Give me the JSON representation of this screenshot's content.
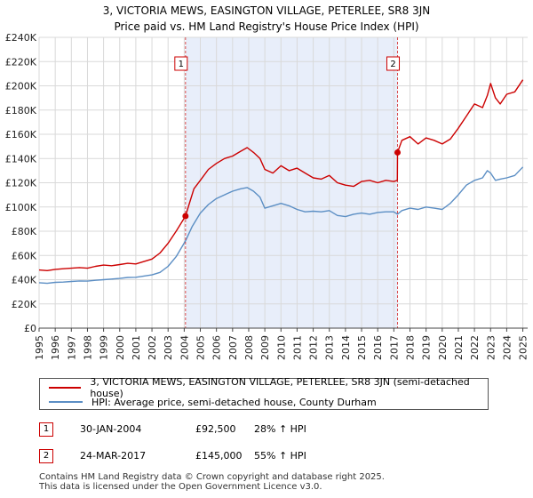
{
  "title": {
    "line1": "3, VICTORIA MEWS, EASINGTON VILLAGE, PETERLEE, SR8 3JN",
    "line2": "Price paid vs. HM Land Registry's House Price Index (HPI)"
  },
  "chart_data": {
    "type": "line",
    "title": "3, VICTORIA MEWS, EASINGTON VILLAGE, PETERLEE, SR8 3JN — Price paid vs. HM Land Registry's House Price Index (HPI)",
    "xlim": [
      1995,
      2025.3
    ],
    "ylim": [
      0,
      240000
    ],
    "x_ticks": [
      1995,
      1996,
      1997,
      1998,
      1999,
      2000,
      2001,
      2002,
      2003,
      2004,
      2005,
      2006,
      2007,
      2008,
      2009,
      2010,
      2011,
      2012,
      2013,
      2014,
      2015,
      2016,
      2017,
      2018,
      2019,
      2020,
      2021,
      2022,
      2023,
      2024,
      2025
    ],
    "y_ticks": [
      {
        "value": 0,
        "label": "£0"
      },
      {
        "value": 20000,
        "label": "£20K"
      },
      {
        "value": 40000,
        "label": "£40K"
      },
      {
        "value": 60000,
        "label": "£60K"
      },
      {
        "value": 80000,
        "label": "£80K"
      },
      {
        "value": 100000,
        "label": "£100K"
      },
      {
        "value": 120000,
        "label": "£120K"
      },
      {
        "value": 140000,
        "label": "£140K"
      },
      {
        "value": 160000,
        "label": "£160K"
      },
      {
        "value": 180000,
        "label": "£180K"
      },
      {
        "value": 200000,
        "label": "£200K"
      },
      {
        "value": 220000,
        "label": "£220K"
      },
      {
        "value": 240000,
        "label": "£240K"
      }
    ],
    "grid": true,
    "shaded_region": {
      "from": 2004.08,
      "to": 2017.23
    },
    "series": [
      {
        "name": "3, VICTORIA MEWS, EASINGTON VILLAGE, PETERLEE, SR8 3JN (semi-detached house)",
        "color": "#cc0000",
        "x": [
          1995.0,
          1995.5,
          1996.0,
          1996.5,
          1997.0,
          1997.5,
          1998.0,
          1998.5,
          1999.0,
          1999.5,
          2000.0,
          2000.5,
          2001.0,
          2001.5,
          2002.0,
          2002.5,
          2003.0,
          2003.5,
          2004.08,
          2004.3,
          2004.6,
          2005.0,
          2005.5,
          2006.0,
          2006.5,
          2007.0,
          2007.5,
          2007.9,
          2008.3,
          2008.7,
          2009.0,
          2009.5,
          2010.0,
          2010.5,
          2011.0,
          2011.5,
          2012.0,
          2012.5,
          2013.0,
          2013.5,
          2014.0,
          2014.5,
          2015.0,
          2015.5,
          2016.0,
          2016.5,
          2017.0,
          2017.22,
          2017.23,
          2017.5,
          2018.0,
          2018.5,
          2019.0,
          2019.5,
          2020.0,
          2020.5,
          2021.0,
          2021.5,
          2022.0,
          2022.5,
          2022.8,
          2023.0,
          2023.3,
          2023.6,
          2024.0,
          2024.5,
          2025.0
        ],
        "y": [
          48000,
          47500,
          48500,
          49000,
          49500,
          50000,
          49500,
          51000,
          52000,
          51500,
          52500,
          53500,
          53000,
          55000,
          57000,
          62000,
          70000,
          80000,
          92500,
          102000,
          115000,
          122000,
          131000,
          136000,
          140000,
          142000,
          146000,
          149000,
          145000,
          140000,
          131000,
          128000,
          134000,
          130000,
          132000,
          128000,
          124000,
          123000,
          126000,
          120000,
          118000,
          117000,
          121000,
          122000,
          120000,
          122000,
          121000,
          122000,
          145000,
          155000,
          158000,
          152000,
          157000,
          155000,
          152000,
          156000,
          165000,
          175000,
          185000,
          182000,
          192000,
          202000,
          190000,
          185000,
          193000,
          195000,
          205000
        ]
      },
      {
        "name": "HPI: Average price, semi-detached house, County Durham",
        "color": "#5b8ec4",
        "x": [
          1995.0,
          1995.5,
          1996.0,
          1996.5,
          1997.0,
          1997.5,
          1998.0,
          1998.5,
          1999.0,
          1999.5,
          2000.0,
          2000.5,
          2001.0,
          2001.5,
          2002.0,
          2002.5,
          2003.0,
          2003.5,
          2004.08,
          2004.5,
          2005.0,
          2005.5,
          2006.0,
          2006.5,
          2007.0,
          2007.5,
          2007.9,
          2008.3,
          2008.7,
          2009.0,
          2009.5,
          2010.0,
          2010.5,
          2011.0,
          2011.5,
          2012.0,
          2012.5,
          2013.0,
          2013.5,
          2014.0,
          2014.5,
          2015.0,
          2015.5,
          2016.0,
          2016.5,
          2017.0,
          2017.23,
          2017.5,
          2018.0,
          2018.5,
          2019.0,
          2019.5,
          2020.0,
          2020.5,
          2021.0,
          2021.5,
          2022.0,
          2022.5,
          2022.8,
          2023.0,
          2023.3,
          2023.6,
          2024.0,
          2024.5,
          2025.0
        ],
        "y": [
          37500,
          37000,
          37800,
          38000,
          38500,
          39000,
          38800,
          39500,
          40000,
          40500,
          41000,
          41800,
          42000,
          43000,
          44000,
          46000,
          51000,
          59000,
          72000,
          84000,
          95000,
          102000,
          107000,
          110000,
          113000,
          115000,
          116000,
          113000,
          108000,
          99000,
          101000,
          103000,
          101000,
          98000,
          96000,
          96500,
          96000,
          97000,
          93000,
          92000,
          94000,
          95000,
          94000,
          95500,
          96000,
          96000,
          94000,
          97000,
          99000,
          98000,
          100000,
          99000,
          98000,
          103000,
          110000,
          118000,
          122000,
          124000,
          130000,
          128000,
          122000,
          123000,
          124000,
          126000,
          133000
        ]
      }
    ],
    "markers": [
      {
        "label": "1",
        "x": 2004.08,
        "y": 92500
      },
      {
        "label": "2",
        "x": 2017.23,
        "y": 145000
      }
    ]
  },
  "legend": {
    "items": [
      {
        "label": "3, VICTORIA MEWS, EASINGTON VILLAGE, PETERLEE, SR8 3JN (semi-detached house)",
        "color": "#cc0000"
      },
      {
        "label": "HPI: Average price, semi-detached house, County Durham",
        "color": "#5b8ec4"
      }
    ]
  },
  "sales": [
    {
      "num": "1",
      "date": "30-JAN-2004",
      "price": "£92,500",
      "hpi": "28% ↑ HPI"
    },
    {
      "num": "2",
      "date": "24-MAR-2017",
      "price": "£145,000",
      "hpi": "55% ↑ HPI"
    }
  ],
  "footer": {
    "line1": "Contains HM Land Registry data © Crown copyright and database right 2025.",
    "line2": "This data is licensed under the Open Government Licence v3.0."
  }
}
